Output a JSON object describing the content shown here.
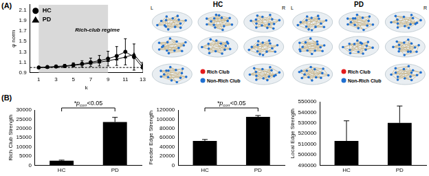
{
  "panel_labels": [
    "(A)",
    "(B)"
  ],
  "chart_data": [
    {
      "type": "line",
      "x_label": "k",
      "y_label": "φ norm",
      "x": [
        1,
        2,
        3,
        4,
        5,
        6,
        7,
        8,
        9,
        10,
        11,
        12,
        13
      ],
      "series": [
        {
          "name": "HC",
          "color": "#000000",
          "marker": "circle",
          "values": [
            1.0,
            1.01,
            1.02,
            1.03,
            1.05,
            1.07,
            1.1,
            1.13,
            1.17,
            1.22,
            1.3,
            1.2,
            1.0
          ],
          "errors": [
            0.0,
            0.01,
            0.02,
            0.03,
            0.04,
            0.06,
            0.08,
            0.1,
            0.14,
            0.18,
            0.25,
            0.25,
            0.1
          ]
        },
        {
          "name": "PD",
          "color": "#000000",
          "marker": "triangle",
          "values": [
            1.0,
            1.0,
            1.01,
            1.02,
            1.04,
            1.06,
            1.08,
            1.1,
            1.13,
            1.16,
            1.2,
            1.25,
            1.05
          ]
        }
      ],
      "xlim": [
        0,
        13
      ],
      "xticks": [
        1,
        3,
        5,
        7,
        9,
        11,
        13
      ],
      "ylim": [
        0.9,
        2.2
      ],
      "yticks": [
        0.9,
        1.1,
        1.3,
        1.5,
        1.7,
        1.9,
        2.1
      ],
      "shaded_region": [
        1,
        9
      ],
      "reference_line": 1,
      "annotation": {
        "text": "Rich-club regime",
        "x": 5.2,
        "y": 1.72
      },
      "legend": "top-left",
      "grid": false
    },
    {
      "type": "bar",
      "y_label": "Rich Club Strength",
      "categories": [
        "HC",
        "PD"
      ],
      "values": [
        2500,
        23500
      ],
      "errors": [
        300,
        2500
      ],
      "color": "#000000",
      "ylim": [
        0,
        30000
      ],
      "yticks": [
        0,
        5000,
        10000,
        15000,
        20000,
        25000,
        30000
      ],
      "significance": {
        "pair": [
          "HC",
          "PD"
        ],
        "text": "*p",
        "subscript": "corr",
        "suffix": "<0.05"
      },
      "grid": false
    },
    {
      "type": "bar",
      "y_label": "Feeder Edge Strength",
      "categories": [
        "HC",
        "PD"
      ],
      "values": [
        53000,
        105000
      ],
      "errors": [
        3000,
        3000
      ],
      "color": "#000000",
      "ylim": [
        0,
        120000
      ],
      "yticks": [
        0,
        20000,
        40000,
        60000,
        80000,
        100000,
        120000
      ],
      "significance": {
        "pair": [
          "HC",
          "PD"
        ],
        "text": "*p",
        "subscript": "corr",
        "suffix": "<0.05"
      },
      "grid": false
    },
    {
      "type": "bar",
      "y_label": "Local Edge Strength",
      "categories": [
        "HC",
        "PD"
      ],
      "values": [
        513000,
        530000
      ],
      "errors": [
        19000,
        16000
      ],
      "color": "#000000",
      "ylim": [
        490000,
        550000
      ],
      "yticks": [
        490000,
        500000,
        510000,
        520000,
        530000,
        540000,
        550000
      ],
      "grid": false
    }
  ],
  "brain_panels": [
    {
      "title": "HC",
      "left": "L",
      "right": "R",
      "legend": [
        {
          "name": "Rich Club",
          "color": "#e41a1c"
        },
        {
          "name": "Non-Rich Club",
          "color": "#1f6fd0"
        }
      ]
    },
    {
      "title": "PD",
      "left": "L",
      "right": "R",
      "legend": [
        {
          "name": "Rich Club",
          "color": "#e41a1c"
        },
        {
          "name": "Non-Rich Club",
          "color": "#1f6fd0"
        }
      ]
    }
  ]
}
